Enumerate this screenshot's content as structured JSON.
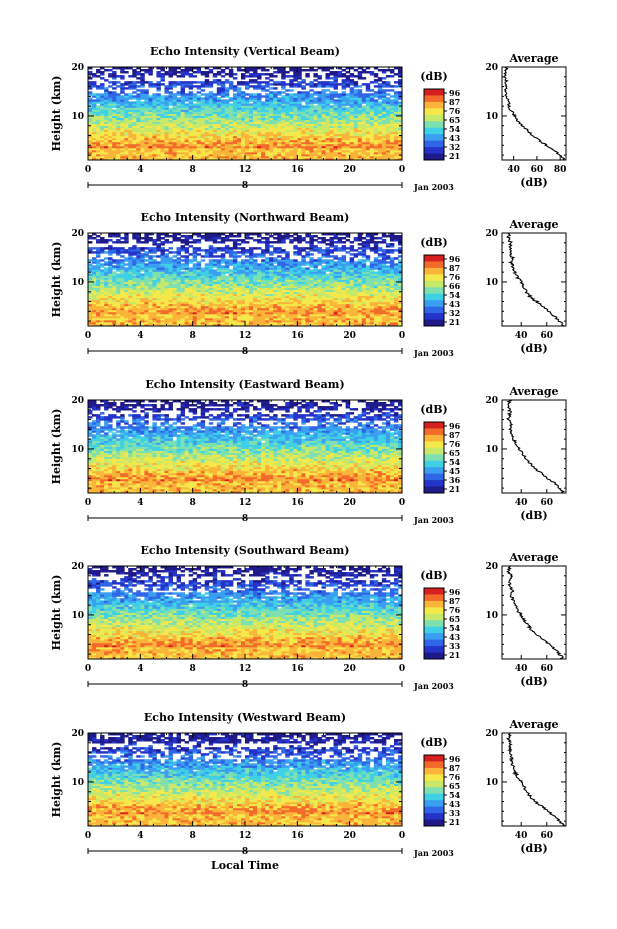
{
  "chart_data": [
    {
      "type": "heatmap",
      "title": "Echo Intensity (Vertical Beam)",
      "ylabel": "Height (km)",
      "date_label": "Jan 2003",
      "day_marker": "8",
      "xlim": [
        0,
        24
      ],
      "ylim": [
        1,
        20
      ],
      "xticks": [
        "0",
        "4",
        "8",
        "12",
        "16",
        "20",
        "0"
      ],
      "yticks": [
        "10",
        "20"
      ],
      "colorbar": {
        "unit": "(dB)",
        "ticks": [
          "96",
          "87",
          "76",
          "65",
          "54",
          "43",
          "32",
          "21"
        ]
      },
      "average": {
        "title": "Average",
        "xlabel": "(dB)",
        "xticks": [
          "40",
          "60",
          "80"
        ],
        "xlim": [
          30,
          85
        ],
        "ylim": [
          1,
          20
        ],
        "yticks": [
          "10",
          "20"
        ],
        "profile": [
          [
            84,
            1
          ],
          [
            80,
            2
          ],
          [
            74,
            3
          ],
          [
            68,
            4
          ],
          [
            62,
            5
          ],
          [
            56,
            6
          ],
          [
            52,
            7
          ],
          [
            47,
            8
          ],
          [
            43,
            9
          ],
          [
            41,
            10
          ],
          [
            38,
            11
          ],
          [
            36,
            12
          ],
          [
            35,
            13
          ],
          [
            34,
            14
          ],
          [
            33,
            15
          ],
          [
            33,
            16
          ],
          [
            34,
            17
          ],
          [
            32,
            18
          ],
          [
            33,
            19
          ],
          [
            34,
            20
          ]
        ]
      }
    },
    {
      "type": "heatmap",
      "title": "Echo Intensity (Northward Beam)",
      "ylabel": "Height (km)",
      "date_label": "Jan 2003",
      "day_marker": "8",
      "xlim": [
        0,
        24
      ],
      "ylim": [
        1,
        20
      ],
      "xticks": [
        "0",
        "4",
        "8",
        "12",
        "16",
        "20",
        "0"
      ],
      "yticks": [
        "10",
        "20"
      ],
      "colorbar": {
        "unit": "(dB)",
        "ticks": [
          "96",
          "87",
          "76",
          "66",
          "54",
          "43",
          "32",
          "21"
        ]
      },
      "average": {
        "title": "Average",
        "xlabel": "(dB)",
        "xticks": [
          "40",
          "60"
        ],
        "xlim": [
          25,
          75
        ],
        "ylim": [
          1,
          20
        ],
        "yticks": [
          "10",
          "20"
        ],
        "profile": [
          [
            73,
            1
          ],
          [
            70,
            2
          ],
          [
            66,
            3
          ],
          [
            62,
            4
          ],
          [
            57,
            5
          ],
          [
            52,
            6
          ],
          [
            47,
            7
          ],
          [
            44,
            8
          ],
          [
            42,
            9
          ],
          [
            40,
            10
          ],
          [
            37,
            11
          ],
          [
            35,
            12
          ],
          [
            34,
            13
          ],
          [
            32,
            14
          ],
          [
            33,
            15
          ],
          [
            31,
            16
          ],
          [
            31,
            17
          ],
          [
            32,
            18
          ],
          [
            30,
            19
          ],
          [
            31,
            20
          ]
        ]
      }
    },
    {
      "type": "heatmap",
      "title": "Echo Intensity (Eastward Beam)",
      "ylabel": "Height (km)",
      "date_label": "Jan 2003",
      "day_marker": "8",
      "xlim": [
        0,
        24
      ],
      "ylim": [
        1,
        20
      ],
      "xticks": [
        "0",
        "4",
        "8",
        "12",
        "16",
        "20",
        "0"
      ],
      "yticks": [
        "10",
        "20"
      ],
      "colorbar": {
        "unit": "(dB)",
        "ticks": [
          "96",
          "87",
          "76",
          "65",
          "54",
          "45",
          "36",
          "21"
        ]
      },
      "average": {
        "title": "Average",
        "xlabel": "(dB)",
        "xticks": [
          "40",
          "60"
        ],
        "xlim": [
          25,
          75
        ],
        "ylim": [
          1,
          20
        ],
        "yticks": [
          "10",
          "20"
        ],
        "profile": [
          [
            73,
            1
          ],
          [
            70,
            2
          ],
          [
            66,
            3
          ],
          [
            61,
            4
          ],
          [
            56,
            5
          ],
          [
            51,
            6
          ],
          [
            47,
            7
          ],
          [
            44,
            8
          ],
          [
            41,
            9
          ],
          [
            39,
            10
          ],
          [
            36,
            11
          ],
          [
            34,
            12
          ],
          [
            33,
            13
          ],
          [
            31,
            14
          ],
          [
            32,
            15
          ],
          [
            30,
            16
          ],
          [
            31,
            17
          ],
          [
            31,
            18
          ],
          [
            30,
            19
          ],
          [
            31,
            20
          ]
        ]
      }
    },
    {
      "type": "heatmap",
      "title": "Echo Intensity (Southward Beam)",
      "ylabel": "Height (km)",
      "date_label": "Jan 2003",
      "day_marker": "8",
      "xlim": [
        0,
        24
      ],
      "ylim": [
        1,
        20
      ],
      "xticks": [
        "0",
        "4",
        "8",
        "12",
        "16",
        "20",
        "0"
      ],
      "yticks": [
        "10",
        "20"
      ],
      "colorbar": {
        "unit": "(dB)",
        "ticks": [
          "96",
          "87",
          "76",
          "65",
          "54",
          "43",
          "33",
          "21"
        ]
      },
      "average": {
        "title": "Average",
        "xlabel": "(dB)",
        "xticks": [
          "40",
          "60"
        ],
        "xlim": [
          25,
          75
        ],
        "ylim": [
          1,
          20
        ],
        "yticks": [
          "10",
          "20"
        ],
        "profile": [
          [
            73,
            1
          ],
          [
            70,
            2
          ],
          [
            66,
            3
          ],
          [
            62,
            4
          ],
          [
            57,
            5
          ],
          [
            52,
            6
          ],
          [
            48,
            7
          ],
          [
            45,
            8
          ],
          [
            42,
            9
          ],
          [
            40,
            10
          ],
          [
            37,
            11
          ],
          [
            35,
            12
          ],
          [
            34,
            13
          ],
          [
            32,
            14
          ],
          [
            33,
            15
          ],
          [
            31,
            16
          ],
          [
            31,
            17
          ],
          [
            32,
            18
          ],
          [
            30,
            19
          ],
          [
            31,
            20
          ]
        ]
      }
    },
    {
      "type": "heatmap",
      "title": "Echo Intensity (Westward Beam)",
      "ylabel": "Height (km)",
      "xlabel": "Local Time",
      "date_label": "Jan 2003",
      "day_marker": "8",
      "xlim": [
        0,
        24
      ],
      "ylim": [
        1,
        20
      ],
      "xticks": [
        "0",
        "4",
        "8",
        "12",
        "16",
        "20",
        "0"
      ],
      "yticks": [
        "10",
        "20"
      ],
      "colorbar": {
        "unit": "(dB)",
        "ticks": [
          "96",
          "87",
          "76",
          "65",
          "54",
          "43",
          "33",
          "21"
        ]
      },
      "average": {
        "title": "Average",
        "xlabel": "(dB)",
        "xticks": [
          "40",
          "60"
        ],
        "xlim": [
          25,
          75
        ],
        "ylim": [
          1,
          20
        ],
        "yticks": [
          "10",
          "20"
        ],
        "profile": [
          [
            73,
            1
          ],
          [
            70,
            2
          ],
          [
            66,
            3
          ],
          [
            61,
            4
          ],
          [
            56,
            5
          ],
          [
            51,
            6
          ],
          [
            47,
            7
          ],
          [
            44,
            8
          ],
          [
            42,
            9
          ],
          [
            40,
            10
          ],
          [
            37,
            11
          ],
          [
            35,
            12
          ],
          [
            34,
            13
          ],
          [
            32,
            14
          ],
          [
            33,
            15
          ],
          [
            31,
            16
          ],
          [
            31,
            17
          ],
          [
            32,
            18
          ],
          [
            30,
            19
          ],
          [
            31,
            20
          ]
        ]
      }
    }
  ],
  "colors": {
    "colormap": [
      "#1f1a8a",
      "#2433c8",
      "#2f66e6",
      "#3a9ff0",
      "#3fd0e6",
      "#7ee0b0",
      "#c8e86a",
      "#f5e84a",
      "#fbb43a",
      "#f36b2a",
      "#d62020"
    ]
  }
}
